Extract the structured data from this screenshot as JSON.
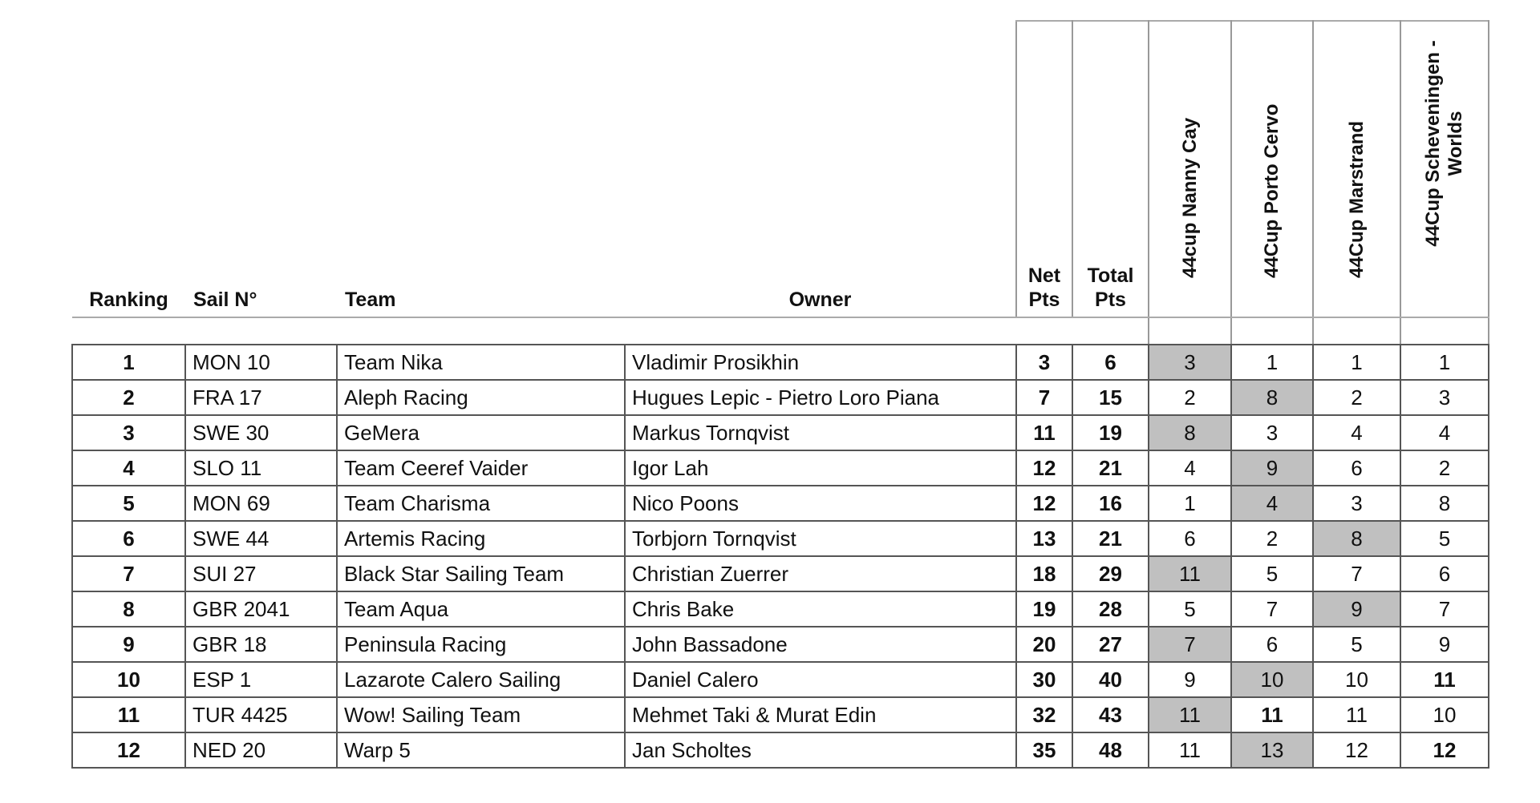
{
  "headers": {
    "ranking": "Ranking",
    "sail": "Sail N°",
    "team": "Team",
    "owner": "Owner",
    "net": "Net Pts",
    "total": "Total Pts",
    "races": [
      "44cup Nanny Cay",
      "44Cup Porto Cervo",
      "44Cup Marstrand",
      "44Cup Scheveningen - Worlds"
    ]
  },
  "discard_shade_color": "#c0c0c0",
  "rows": [
    {
      "rank": "1",
      "sail": "MON 10",
      "team": "Team Nika",
      "owner": "Vladimir Prosikhin",
      "net": "3",
      "total": "6",
      "races": [
        "3",
        "1",
        "1",
        "1"
      ],
      "discard": 0
    },
    {
      "rank": "2",
      "sail": "FRA 17",
      "team": "Aleph Racing",
      "owner": "Hugues Lepic - Pietro Loro Piana",
      "net": "7",
      "total": "15",
      "races": [
        "2",
        "8",
        "2",
        "3"
      ],
      "discard": 1
    },
    {
      "rank": "3",
      "sail": "SWE 30",
      "team": "GeMera",
      "owner": "Markus Tornqvist",
      "net": "11",
      "total": "19",
      "races": [
        "8",
        "3",
        "4",
        "4"
      ],
      "discard": 0
    },
    {
      "rank": "4",
      "sail": "SLO 11",
      "team": "Team Ceeref Vaider",
      "owner": "Igor Lah",
      "net": "12",
      "total": "21",
      "races": [
        "4",
        "9",
        "6",
        "2"
      ],
      "discard": 1
    },
    {
      "rank": "5",
      "sail": "MON 69",
      "team": "Team Charisma",
      "owner": "Nico Poons",
      "net": "12",
      "total": "16",
      "races": [
        "1",
        "4",
        "3",
        "8"
      ],
      "discard": 1
    },
    {
      "rank": "6",
      "sail": "SWE 44",
      "team": "Artemis Racing",
      "owner": "Torbjorn Tornqvist",
      "net": "13",
      "total": "21",
      "races": [
        "6",
        "2",
        "8",
        "5"
      ],
      "discard": 2
    },
    {
      "rank": "7",
      "sail": "SUI 27",
      "team": "Black Star Sailing Team",
      "owner": "Christian Zuerrer",
      "net": "18",
      "total": "29",
      "races": [
        "11",
        "5",
        "7",
        "6"
      ],
      "discard": 0
    },
    {
      "rank": "8",
      "sail": "GBR 2041",
      "team": "Team Aqua",
      "owner": "Chris Bake",
      "net": "19",
      "total": "28",
      "races": [
        "5",
        "7",
        "9",
        "7"
      ],
      "discard": 2
    },
    {
      "rank": "9",
      "sail": "GBR 18",
      "team": "Peninsula Racing",
      "owner": "John Bassadone",
      "net": "20",
      "total": "27",
      "races": [
        "7",
        "6",
        "5",
        "9"
      ],
      "discard": 0
    },
    {
      "rank": "10",
      "sail": "ESP 1",
      "team": "Lazarote Calero Sailing",
      "owner": "Daniel Calero",
      "net": "30",
      "total": "40",
      "races": [
        "9",
        "10",
        "10",
        "11"
      ],
      "discard": 1,
      "bold": [
        3
      ]
    },
    {
      "rank": "11",
      "sail": "TUR 4425",
      "team": "Wow! Sailing Team",
      "owner": "Mehmet Taki & Murat Edin",
      "net": "32",
      "total": "43",
      "races": [
        "11",
        "11",
        "11",
        "10"
      ],
      "discard": 0,
      "bold": [
        1
      ]
    },
    {
      "rank": "12",
      "sail": "NED 20",
      "team": "Warp 5",
      "owner": "Jan Scholtes",
      "net": "35",
      "total": "48",
      "races": [
        "11",
        "13",
        "12",
        "12"
      ],
      "discard": 1,
      "bold": [
        3
      ]
    }
  ]
}
